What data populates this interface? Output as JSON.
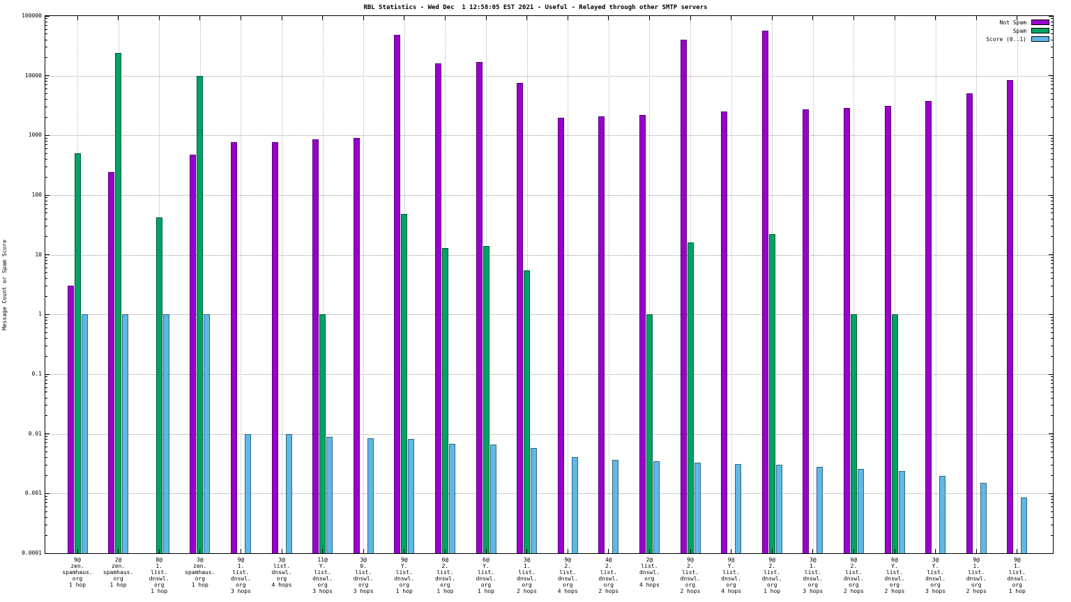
{
  "chart_data": {
    "type": "bar",
    "title": "RBL Statistics - Wed Dec  1 12:58:05 EST 2021 - Useful - Relayed through other SMTP servers",
    "xlabel": "",
    "ylabel": "Message Count or Spam Score",
    "yscale": "log",
    "ylim": [
      0.0001,
      100000
    ],
    "grid": true,
    "legend_position": "top-right",
    "ytick_labels": [
      "100000",
      "10000",
      "1000",
      "100",
      "10",
      "1",
      "0.1",
      "0.01",
      "0.001",
      "0.0001"
    ],
    "categories": [
      [
        "9@",
        "zen.",
        "spamhaus.",
        "org",
        "1 hop"
      ],
      [
        "2@",
        "zen.",
        "spamhaus.",
        "org",
        "1 hop"
      ],
      [
        "8@",
        "1.",
        "list.",
        "dnswl.",
        "org",
        "1 hop"
      ],
      [
        "3@",
        "zen.",
        "spamhaus.",
        "org",
        "1 hop"
      ],
      [
        "9@",
        "1.",
        "list.",
        "dnswl.",
        "org",
        "3 hops"
      ],
      [
        "3@",
        "list.",
        "dnswl.",
        "org",
        "4 hops"
      ],
      [
        "11@",
        "Y.",
        "list.",
        "dnswl.",
        "org",
        "3 hops"
      ],
      [
        "3@",
        "0.",
        "list.",
        "dnswl.",
        "org",
        "3 hops"
      ],
      [
        "9@",
        "Y.",
        "list.",
        "dnswl.",
        "org",
        "1 hop"
      ],
      [
        "6@",
        "2.",
        "list.",
        "dnswl.",
        "org",
        "1 hop"
      ],
      [
        "6@",
        "Y.",
        "list.",
        "dnswl.",
        "org",
        "1 hop"
      ],
      [
        "3@",
        "1.",
        "list.",
        "dnswl.",
        "org",
        "2 hops"
      ],
      [
        "9@",
        "2.",
        "list.",
        "dnswl.",
        "org",
        "4 hops"
      ],
      [
        "4@",
        "2.",
        "list.",
        "dnswl.",
        "org",
        "2 hops"
      ],
      [
        "2@",
        "list.",
        "dnswl.",
        "org",
        "4 hops"
      ],
      [
        "9@",
        "2.",
        "list.",
        "dnswl.",
        "org",
        "2 hops"
      ],
      [
        "9@",
        "Y.",
        "list.",
        "dnswl.",
        "org",
        "4 hops"
      ],
      [
        "9@",
        "2.",
        "list.",
        "dnswl.",
        "org",
        "1 hop"
      ],
      [
        "3@",
        "1.",
        "list.",
        "dnswl.",
        "org",
        "3 hops"
      ],
      [
        "6@",
        "2.",
        "list.",
        "dnswl.",
        "org",
        "2 hops"
      ],
      [
        "6@",
        "Y.",
        "list.",
        "dnswl.",
        "org",
        "2 hops"
      ],
      [
        "3@",
        "Y.",
        "list.",
        "dnswl.",
        "org",
        "3 hops"
      ],
      [
        "9@",
        "1.",
        "list.",
        "dnswl.",
        "org",
        "2 hops"
      ],
      [
        "9@",
        "1.",
        "list.",
        "dnswl.",
        "org",
        "1 hop"
      ]
    ],
    "series": [
      {
        "name": "Not Spam",
        "slug": "not-spam",
        "color": "#9a00cd",
        "values": [
          3,
          240,
          null,
          480,
          780,
          780,
          850,
          900,
          48000,
          16000,
          17000,
          7500,
          1950,
          2100,
          2200,
          40000,
          2500,
          57000,
          2700,
          2900,
          3100,
          3800,
          5000,
          8500
        ]
      },
      {
        "name": "Spam",
        "slug": "spam",
        "color": "#00a366",
        "values": [
          500,
          24000,
          42,
          10000,
          null,
          null,
          1,
          null,
          48,
          13,
          14,
          5.5,
          null,
          null,
          1,
          16,
          null,
          22,
          null,
          1,
          1,
          null,
          null,
          null
        ]
      },
      {
        "name": "Score (0..1)",
        "slug": "score",
        "color": "#5fb8e6",
        "values": [
          1,
          1,
          1,
          1,
          0.0099,
          0.0098,
          0.009,
          0.0085,
          0.0083,
          0.0068,
          0.0067,
          0.0058,
          0.0041,
          0.0037,
          0.0035,
          0.0033,
          0.0031,
          0.003,
          0.0028,
          0.0026,
          0.0024,
          0.002,
          0.0015,
          0.00085
        ]
      }
    ]
  }
}
